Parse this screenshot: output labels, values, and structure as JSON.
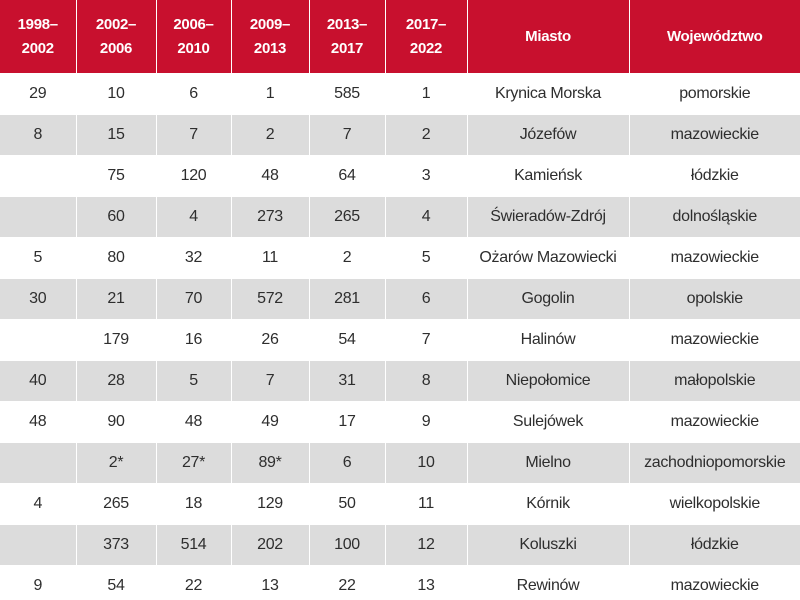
{
  "headers": [
    "1998–2002",
    "2002–2006",
    "2006–2010",
    "2009–2013",
    "2013–2017",
    "2017–2022",
    "Miasto",
    "Województwo"
  ],
  "header_lines": [
    [
      "1998–",
      "2002"
    ],
    [
      "2002–",
      "2006"
    ],
    [
      "2006–",
      "2010"
    ],
    [
      "2009–",
      "2013"
    ],
    [
      "2013–",
      "2017"
    ],
    [
      "2017–",
      "2022"
    ],
    [
      "Miasto"
    ],
    [
      "Województwo"
    ]
  ],
  "rows": [
    [
      "29",
      "10",
      "6",
      "1",
      "585",
      "1",
      "Krynica Morska",
      "pomorskie"
    ],
    [
      "8",
      "15",
      "7",
      "2",
      "7",
      "2",
      "Józefów",
      "mazowieckie"
    ],
    [
      "",
      "75",
      "120",
      "48",
      "64",
      "3",
      "Kamieńsk",
      "łódzkie"
    ],
    [
      "",
      "60",
      "4",
      "273",
      "265",
      "4",
      "Świeradów-Zdrój",
      "dolnośląskie"
    ],
    [
      "5",
      "80",
      "32",
      "11",
      "2",
      "5",
      "Ożarów Mazowiecki",
      "mazowieckie"
    ],
    [
      "30",
      "21",
      "70",
      "572",
      "281",
      "6",
      "Gogolin",
      "opolskie"
    ],
    [
      "",
      "179",
      "16",
      "26",
      "54",
      "7",
      "Halinów",
      "mazowieckie"
    ],
    [
      "40",
      "28",
      "5",
      "7",
      "31",
      "8",
      "Niepołomice",
      "małopolskie"
    ],
    [
      "48",
      "90",
      "48",
      "49",
      "17",
      "9",
      "Sulejówek",
      "mazowieckie"
    ],
    [
      "",
      "2*",
      "27*",
      "89*",
      "6",
      "10",
      "Mielno",
      "zachodniopomorskie"
    ],
    [
      "4",
      "265",
      "18",
      "129",
      "50",
      "11",
      "Kórnik",
      "wielkopolskie"
    ],
    [
      "",
      "373",
      "514",
      "202",
      "100",
      "12",
      "Koluszki",
      "łódzkie"
    ],
    [
      "9",
      "54",
      "22",
      "13",
      "22",
      "13",
      "Rewinów",
      "mazowieckie"
    ]
  ],
  "colors": {
    "header_bg": "#c8102e",
    "header_text": "#ffffff",
    "row_alt_bg": "#dcdcdc",
    "row_bg": "#ffffff",
    "text": "#2e2e2e"
  }
}
